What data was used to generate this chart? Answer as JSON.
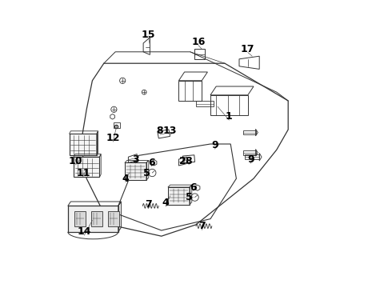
{
  "bg_color": "#ffffff",
  "line_color": "#333333",
  "text_color": "#000000",
  "fontsize_labels": 9,
  "lw_main": 0.8,
  "lw_parts": 0.7
}
